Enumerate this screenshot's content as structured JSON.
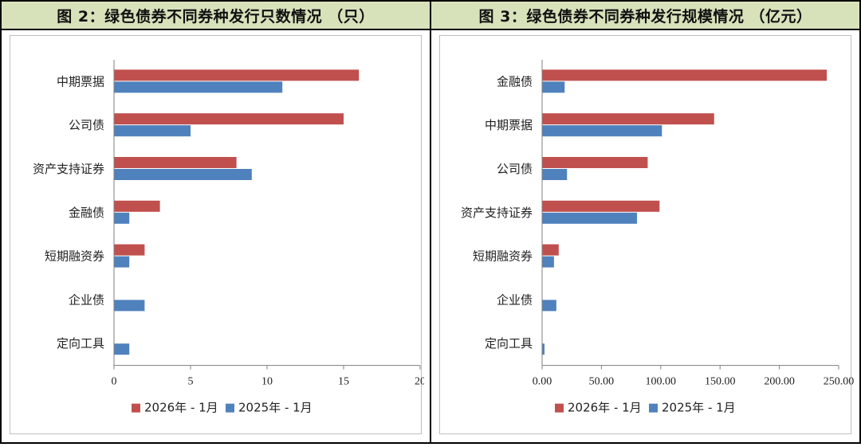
{
  "colors": {
    "series_2026": "#c0504d",
    "series_2025": "#4f81bd",
    "header_bg": "#d7e2bb"
  },
  "chart_data": [
    {
      "type": "bar",
      "orientation": "horizontal",
      "title": "图 2：绿色债券不同券种发行只数情况 （只）",
      "categories": [
        "中期票据",
        "公司债",
        "资产支持证券",
        "金融债",
        "短期融资券",
        "企业债",
        "定向工具"
      ],
      "series": [
        {
          "name": "2026年 - 1月",
          "values": [
            16,
            15,
            8,
            3,
            2,
            0,
            0
          ]
        },
        {
          "name": "2025年 - 1月",
          "values": [
            11,
            5,
            9,
            1,
            1,
            2,
            1
          ]
        }
      ],
      "xlim": [
        0,
        20
      ],
      "xticks": [
        0,
        5,
        10,
        15,
        20
      ],
      "tick_labels": [
        "0",
        "5",
        "10",
        "15",
        "20"
      ],
      "grid": false,
      "legend_position": "bottom"
    },
    {
      "type": "bar",
      "orientation": "horizontal",
      "title": "图 3：绿色债券不同券种发行规模情况 （亿元）",
      "categories": [
        "金融债",
        "中期票据",
        "公司债",
        "资产支持证券",
        "短期融资券",
        "企业债",
        "定向工具"
      ],
      "series": [
        {
          "name": "2026年 - 1月",
          "values": [
            240,
            145,
            89,
            99,
            14,
            0,
            0
          ]
        },
        {
          "name": "2025年 - 1月",
          "values": [
            19,
            101,
            21,
            80,
            10,
            12,
            2
          ]
        }
      ],
      "xlim": [
        0,
        250
      ],
      "xticks": [
        0,
        50,
        100,
        150,
        200,
        250
      ],
      "tick_labels": [
        "0.00",
        "50.00",
        "100.00",
        "150.00",
        "200.00",
        "250.00"
      ],
      "grid": false,
      "legend_position": "bottom"
    }
  ]
}
